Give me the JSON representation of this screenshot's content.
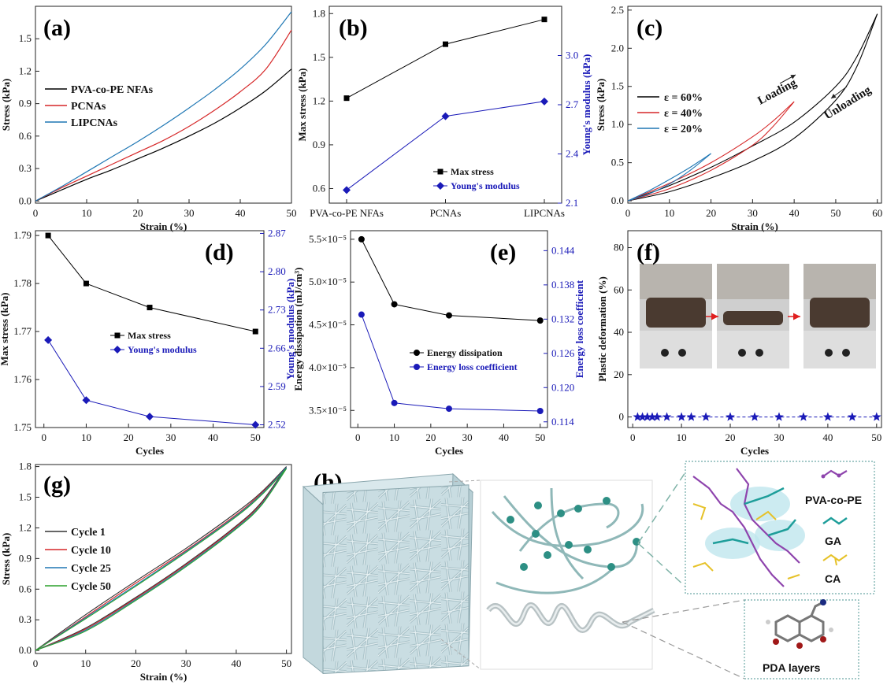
{
  "chart_data": [
    {
      "id": "a",
      "type": "line",
      "panel_label": "(a)",
      "xlabel": "Strain (%)",
      "ylabel": "Stress (kPa)",
      "xlim": [
        0,
        50
      ],
      "ylim": [
        -0.02,
        1.8
      ],
      "xticks": [
        0,
        10,
        20,
        30,
        40,
        50
      ],
      "yticks": [
        0.0,
        0.3,
        0.6,
        0.9,
        1.2,
        1.5
      ],
      "x": [
        0,
        5,
        10,
        15,
        20,
        25,
        30,
        35,
        40,
        45,
        50
      ],
      "series": [
        {
          "name": "PVA-co-PE NFAs",
          "color": "#000000",
          "values": [
            0,
            0.1,
            0.2,
            0.29,
            0.39,
            0.49,
            0.6,
            0.72,
            0.86,
            1.02,
            1.22
          ]
        },
        {
          "name": "PCNAs",
          "color": "#d62728",
          "values": [
            0,
            0.12,
            0.23,
            0.34,
            0.45,
            0.56,
            0.69,
            0.84,
            1.01,
            1.22,
            1.58
          ]
        },
        {
          "name": "LIPCNAs",
          "color": "#1f77b4",
          "values": [
            0,
            0.13,
            0.27,
            0.41,
            0.55,
            0.7,
            0.86,
            1.03,
            1.22,
            1.45,
            1.75
          ]
        }
      ]
    },
    {
      "id": "b",
      "type": "line",
      "panel_label": "(b)",
      "categories": [
        "PVA-co-PE NFAs",
        "PCNAs",
        "LIPCNAs"
      ],
      "ylabel": "Max stress (kPa)",
      "y2label": "Young's modulus (kPa)",
      "ylim": [
        0.5,
        1.85
      ],
      "y2lim": [
        2.1,
        3.3
      ],
      "yticks": [
        0.6,
        0.9,
        1.2,
        1.5,
        1.8
      ],
      "y2ticks": [
        2.1,
        2.4,
        2.7,
        3.0
      ],
      "series": [
        {
          "name": "Max stress",
          "color": "#000000",
          "marker": "square",
          "axis": "left",
          "values": [
            1.22,
            1.59,
            1.76
          ]
        },
        {
          "name": "Young's modulus",
          "color": "#1a1ab8",
          "marker": "diamond",
          "axis": "right",
          "values": [
            2.18,
            2.63,
            2.72
          ]
        }
      ]
    },
    {
      "id": "c",
      "type": "line",
      "panel_label": "(c)",
      "xlabel": "Strain (%)",
      "ylabel": "Stress (kPa)",
      "xlim": [
        0,
        61
      ],
      "ylim": [
        -0.03,
        2.55
      ],
      "xticks": [
        0,
        10,
        20,
        30,
        40,
        50,
        60
      ],
      "yticks": [
        0.0,
        0.5,
        1.0,
        1.5,
        2.0,
        2.5
      ],
      "annotations": [
        "Loading",
        "Unloading"
      ],
      "series": [
        {
          "name": "ε = 60%",
          "color": "#000000",
          "loading": [
            [
              0,
              0
            ],
            [
              10,
              0.2
            ],
            [
              20,
              0.44
            ],
            [
              30,
              0.72
            ],
            [
              40,
              1.03
            ],
            [
              50,
              1.5
            ],
            [
              55,
              1.88
            ],
            [
              60,
              2.45
            ]
          ],
          "unloading": [
            [
              60,
              2.45
            ],
            [
              55,
              1.75
            ],
            [
              50,
              1.32
            ],
            [
              40,
              0.82
            ],
            [
              30,
              0.52
            ],
            [
              20,
              0.3
            ],
            [
              10,
              0.12
            ],
            [
              0,
              0
            ]
          ]
        },
        {
          "name": "ε = 40%",
          "color": "#d62728",
          "loading": [
            [
              0,
              0
            ],
            [
              10,
              0.23
            ],
            [
              20,
              0.5
            ],
            [
              30,
              0.84
            ],
            [
              35,
              1.05
            ],
            [
              40,
              1.3
            ]
          ],
          "unloading": [
            [
              40,
              1.3
            ],
            [
              35,
              0.98
            ],
            [
              30,
              0.73
            ],
            [
              20,
              0.4
            ],
            [
              10,
              0.16
            ],
            [
              0,
              0
            ]
          ]
        },
        {
          "name": "ε = 20%",
          "color": "#1f77b4",
          "loading": [
            [
              0,
              0
            ],
            [
              5,
              0.13
            ],
            [
              10,
              0.28
            ],
            [
              15,
              0.44
            ],
            [
              20,
              0.62
            ]
          ],
          "unloading": [
            [
              20,
              0.62
            ],
            [
              15,
              0.4
            ],
            [
              10,
              0.22
            ],
            [
              5,
              0.09
            ],
            [
              0,
              0
            ]
          ]
        }
      ]
    },
    {
      "id": "d",
      "type": "line",
      "panel_label": "(d)",
      "xlabel": "Cycles",
      "ylabel": "Max stress (kPa)",
      "y2label": "Young's modulus (kPa)",
      "xlim": [
        -2,
        52
      ],
      "ylim": [
        1.75,
        1.791
      ],
      "y2lim": [
        2.515,
        2.875
      ],
      "xticks": [
        0,
        10,
        20,
        30,
        40,
        50
      ],
      "yticks": [
        1.75,
        1.76,
        1.77,
        1.78,
        1.79
      ],
      "y2ticks": [
        2.52,
        2.59,
        2.66,
        2.73,
        2.8,
        2.87
      ],
      "x": [
        1,
        10,
        25,
        50
      ],
      "series": [
        {
          "name": "Max stress",
          "color": "#000000",
          "marker": "square",
          "axis": "left",
          "values": [
            1.79,
            1.78,
            1.775,
            1.77
          ]
        },
        {
          "name": "Young's modulus",
          "color": "#1a1ab8",
          "marker": "diamond",
          "axis": "right",
          "values": [
            2.675,
            2.565,
            2.535,
            2.52
          ]
        }
      ]
    },
    {
      "id": "e",
      "type": "line",
      "panel_label": "(e)",
      "xlabel": "Cycles",
      "ylabel": "Energy dissipation (mJ/cm³)",
      "y2label": "Energy loss coefficient",
      "xlim": [
        -2,
        52
      ],
      "ylim": [
        3.3e-05,
        5.6e-05
      ],
      "y2lim": [
        0.113,
        0.1475
      ],
      "xticks": [
        0,
        10,
        20,
        30,
        40,
        50
      ],
      "ytick_labels": [
        "3.5×10⁻⁵",
        "4.0×10⁻⁵",
        "4.5×10⁻⁵",
        "5.0×10⁻⁵",
        "5.5×10⁻⁵"
      ],
      "yticks": [
        3.5e-05,
        4e-05,
        4.5e-05,
        5e-05,
        5.5e-05
      ],
      "y2ticks": [
        0.114,
        0.12,
        0.126,
        0.132,
        0.138,
        0.144
      ],
      "x": [
        1,
        10,
        25,
        50
      ],
      "series": [
        {
          "name": "Energy dissipation",
          "color": "#000000",
          "marker": "circle",
          "axis": "left",
          "values": [
            5.5e-05,
            4.74e-05,
            4.61e-05,
            4.55e-05
          ]
        },
        {
          "name": "Energy loss coefficient",
          "color": "#1a1ab8",
          "marker": "circle",
          "axis": "right",
          "values": [
            0.1328,
            0.1173,
            0.1163,
            0.1159
          ]
        }
      ]
    },
    {
      "id": "f",
      "type": "scatter",
      "panel_label": "(f)",
      "xlabel": "Cycles",
      "ylabel": "Plastic deformation (%)",
      "xlim": [
        -1,
        51
      ],
      "ylim": [
        -5,
        88
      ],
      "xticks": [
        0,
        10,
        20,
        30,
        40,
        50
      ],
      "yticks": [
        0,
        20,
        40,
        60,
        80
      ],
      "x": [
        1,
        2,
        3,
        4,
        5,
        7,
        10,
        12,
        15,
        20,
        25,
        30,
        35,
        40,
        45,
        50
      ],
      "series": [
        {
          "name": "",
          "color": "#1a1ab8",
          "marker": "star",
          "values": [
            0,
            0,
            0,
            0,
            0,
            0,
            0,
            0,
            0,
            0,
            0,
            0,
            0,
            0,
            0,
            0
          ]
        }
      ]
    },
    {
      "id": "g",
      "type": "line",
      "panel_label": "(g)",
      "xlabel": "Strain (%)",
      "ylabel": "Stress (kPa)",
      "xlim": [
        0,
        51
      ],
      "ylim": [
        -0.03,
        1.82
      ],
      "xticks": [
        0,
        10,
        20,
        30,
        40,
        50
      ],
      "yticks": [
        0.0,
        0.3,
        0.6,
        0.9,
        1.2,
        1.5,
        1.8
      ],
      "series": [
        {
          "name": "Cycle 1",
          "color": "#333333",
          "loading": [
            [
              0,
              0
            ],
            [
              10,
              0.35
            ],
            [
              20,
              0.68
            ],
            [
              30,
              1.0
            ],
            [
              40,
              1.35
            ],
            [
              45,
              1.55
            ],
            [
              50,
              1.8
            ]
          ],
          "unloading": [
            [
              50,
              1.8
            ],
            [
              45,
              1.45
            ],
            [
              40,
              1.22
            ],
            [
              30,
              0.85
            ],
            [
              20,
              0.52
            ],
            [
              10,
              0.22
            ],
            [
              0,
              0
            ]
          ]
        },
        {
          "name": "Cycle 10",
          "color": "#d62728",
          "loading": [
            [
              0,
              0
            ],
            [
              10,
              0.33
            ],
            [
              20,
              0.66
            ],
            [
              30,
              0.98
            ],
            [
              40,
              1.33
            ],
            [
              45,
              1.54
            ],
            [
              50,
              1.79
            ]
          ],
          "unloading": [
            [
              50,
              1.79
            ],
            [
              45,
              1.44
            ],
            [
              40,
              1.21
            ],
            [
              30,
              0.84
            ],
            [
              20,
              0.51
            ],
            [
              10,
              0.21
            ],
            [
              0,
              0
            ]
          ]
        },
        {
          "name": "Cycle 25",
          "color": "#1f77b4",
          "loading": [
            [
              0,
              0
            ],
            [
              10,
              0.32
            ],
            [
              20,
              0.64
            ],
            [
              30,
              0.97
            ],
            [
              40,
              1.32
            ],
            [
              45,
              1.53
            ],
            [
              50,
              1.79
            ]
          ],
          "unloading": [
            [
              50,
              1.79
            ],
            [
              45,
              1.43
            ],
            [
              40,
              1.2
            ],
            [
              30,
              0.83
            ],
            [
              20,
              0.5
            ],
            [
              10,
              0.2
            ],
            [
              0,
              0
            ]
          ]
        },
        {
          "name": "Cycle 50",
          "color": "#2ca02c",
          "loading": [
            [
              0,
              0
            ],
            [
              10,
              0.31
            ],
            [
              20,
              0.63
            ],
            [
              30,
              0.96
            ],
            [
              40,
              1.31
            ],
            [
              45,
              1.52
            ],
            [
              50,
              1.78
            ]
          ],
          "unloading": [
            [
              50,
              1.78
            ],
            [
              45,
              1.42
            ],
            [
              40,
              1.19
            ],
            [
              30,
              0.82
            ],
            [
              20,
              0.49
            ],
            [
              10,
              0.19
            ],
            [
              0,
              0
            ]
          ]
        }
      ]
    }
  ],
  "schematic": {
    "panel_label": "(h)",
    "labels": {
      "pva": "PVA-co-PE",
      "ga": "GA",
      "ca": "CA",
      "pda": "PDA layers"
    }
  }
}
